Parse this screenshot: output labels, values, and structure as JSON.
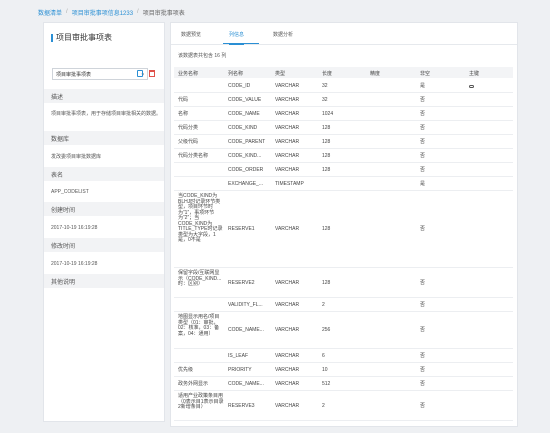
{
  "breadcrumb": {
    "items": [
      "数据清单",
      "项目审批事项信息1233",
      "项目审批事项表"
    ],
    "separator": "/"
  },
  "left_panel": {
    "title": "项目审批事项表",
    "select_value": "项目审批事项表",
    "sections": [
      {
        "label": "描述",
        "value": "项目审批事项表，用于存储项目审批相关的数据。"
      },
      {
        "label": "数据库",
        "value": "发改委项目审批数据库"
      },
      {
        "label": "表名",
        "value": "APP_CODELIST"
      },
      {
        "label": "创建时间",
        "value": "2017-10-19 16:19:28"
      },
      {
        "label": "修改时间",
        "value": "2017-10-19 16:19:28"
      },
      {
        "label": "其他说明",
        "value": ""
      }
    ]
  },
  "tabs": [
    "数据预览",
    "列信息",
    "数据分析"
  ],
  "active_tab_index": 1,
  "count_text": "该数据表共包含 16 列",
  "columns": [
    "业务名称",
    "列名称",
    "类型",
    "长度",
    "精度",
    "非空",
    "主键"
  ],
  "rows": [
    {
      "biz": "",
      "name": "CODE_ID",
      "type": "VARCHAR",
      "len": "32",
      "prec": "",
      "notnull": "是",
      "pk": true
    },
    {
      "biz": "代码",
      "name": "CODE_VALUE",
      "type": "VARCHAR",
      "len": "32",
      "prec": "",
      "notnull": "否",
      "pk": false
    },
    {
      "biz": "名称",
      "name": "CODE_NAME",
      "type": "VARCHAR",
      "len": "1024",
      "prec": "",
      "notnull": "否",
      "pk": false
    },
    {
      "biz": "代码分类",
      "name": "CODE_KIND",
      "type": "VARCHAR",
      "len": "128",
      "prec": "",
      "notnull": "否",
      "pk": false
    },
    {
      "biz": "父级代码",
      "name": "CODE_PARENT",
      "type": "VARCHAR",
      "len": "128",
      "prec": "",
      "notnull": "否",
      "pk": false
    },
    {
      "biz": "代码分类名称",
      "name": "CODE_KIND...",
      "type": "VARCHAR",
      "len": "128",
      "prec": "",
      "notnull": "否",
      "pk": false
    },
    {
      "biz": "",
      "name": "CODE_ORDER",
      "type": "VARCHAR",
      "len": "128",
      "prec": "",
      "notnull": "否",
      "pk": false
    },
    {
      "biz": "",
      "name": "EXCHANGE_...",
      "type": "TIMESTAMP",
      "len": "",
      "prec": "",
      "notnull": "是",
      "pk": false
    },
    {
      "biz": "当CODE_KIND为BLHJ时记录环节类型，项目环节时为“1”，事项环节为“2”；当CODE_KIND为TITLE_TYPE时记录类型为大字段，1是，0不是",
      "name": "RESERVE1",
      "type": "VARCHAR",
      "len": "128",
      "prec": "",
      "notnull": "否",
      "pk": false
    },
    {
      "biz": "保留字段/互联网显示（CODE_KIND...时：区别）",
      "name": "RESERVE2",
      "type": "VARCHAR",
      "len": "128",
      "prec": "",
      "notnull": "否",
      "pk": false
    },
    {
      "biz": "",
      "name": "VALIDITY_FL...",
      "type": "VARCHAR",
      "len": "2",
      "prec": "",
      "notnull": "否",
      "pk": false
    },
    {
      "biz": "地图显示用名/项目类型（01：审批，02：核准，03：备案，04：通用）",
      "name": "CODE_NAME...",
      "type": "VARCHAR",
      "len": "256",
      "prec": "",
      "notnull": "否",
      "pk": false
    },
    {
      "biz": "",
      "name": "IS_LEAF",
      "type": "VARCHAR",
      "len": "6",
      "prec": "",
      "notnull": "否",
      "pk": false
    },
    {
      "biz": "优先级",
      "name": "PRIORITY",
      "type": "VARCHAR",
      "len": "10",
      "prec": "",
      "notnull": "否",
      "pk": false
    },
    {
      "biz": "政务外网显示",
      "name": "CODE_NAME...",
      "type": "VARCHAR",
      "len": "512",
      "prec": "",
      "notnull": "否",
      "pk": false
    },
    {
      "biz": "适用产业政策条目用（0表示目1表示目录 2新增条目）",
      "name": "RESERVE3",
      "type": "VARCHAR",
      "len": "2",
      "prec": "",
      "notnull": "否",
      "pk": false
    }
  ],
  "colors": {
    "accent": "#2a8fd4",
    "danger": "#e0524b",
    "section_bg": "#f2f3f5",
    "page_bg": "#eef0f3"
  },
  "icons": {
    "pk": "key-icon",
    "edit": "document-icon",
    "delete": "trash-icon"
  }
}
